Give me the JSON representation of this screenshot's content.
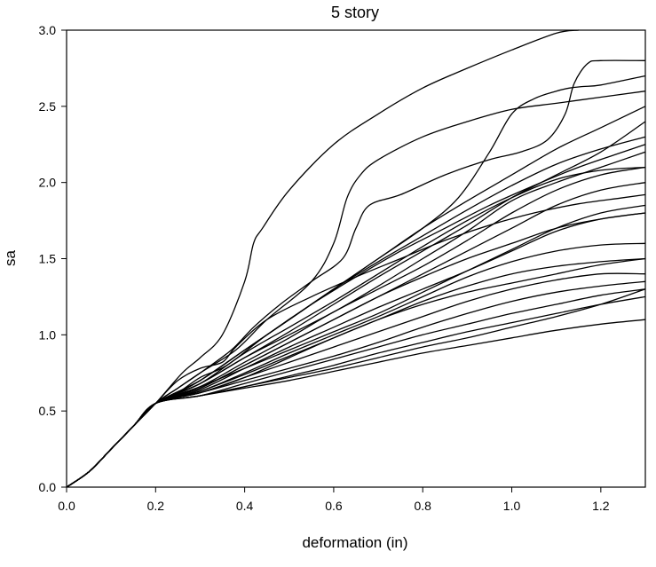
{
  "chart_data": {
    "type": "line",
    "title": "5 story",
    "xlabel": "deformation (in)",
    "ylabel": "sa",
    "xlim": [
      0,
      1.3
    ],
    "ylim": [
      0,
      3.0
    ],
    "x_ticks": [
      "0.0",
      "0.2",
      "0.4",
      "0.6",
      "0.8",
      "1.0",
      "1.2"
    ],
    "y_ticks": [
      "0.0",
      "0.5",
      "1.0",
      "1.5",
      "2.0",
      "2.5",
      "3.0"
    ],
    "grid": false,
    "legend": "none",
    "line_color": "#000000",
    "series": [
      {
        "x": [
          0,
          0.05,
          0.1,
          0.15,
          0.2,
          0.26,
          0.3,
          0.35,
          0.4,
          0.42,
          0.44,
          0.5,
          0.6,
          0.7,
          0.8,
          0.9,
          1.0,
          1.1,
          1.15
        ],
        "y": [
          0,
          0.1,
          0.25,
          0.4,
          0.55,
          0.75,
          0.85,
          1.0,
          1.35,
          1.6,
          1.7,
          1.95,
          2.25,
          2.45,
          2.62,
          2.75,
          2.87,
          2.98,
          3.0
        ]
      },
      {
        "x": [
          0,
          0.05,
          0.1,
          0.15,
          0.2,
          0.25,
          0.3,
          0.37,
          0.42,
          0.48,
          0.55,
          0.62,
          0.65,
          0.68,
          0.75,
          0.85,
          0.95,
          1.02,
          1.08,
          1.12,
          1.14,
          1.17,
          1.2,
          1.3
        ],
        "y": [
          0,
          0.1,
          0.25,
          0.4,
          0.55,
          0.65,
          0.75,
          0.9,
          1.05,
          1.2,
          1.35,
          1.5,
          1.7,
          1.85,
          1.92,
          2.05,
          2.15,
          2.2,
          2.28,
          2.45,
          2.65,
          2.78,
          2.8,
          2.8
        ]
      },
      {
        "x": [
          0,
          0.05,
          0.1,
          0.15,
          0.2,
          0.25,
          0.3,
          0.38,
          0.45,
          0.55,
          0.6,
          0.63,
          0.66,
          0.7,
          0.8,
          0.9,
          1.0,
          1.1,
          1.2,
          1.3
        ],
        "y": [
          0,
          0.1,
          0.25,
          0.4,
          0.55,
          0.65,
          0.75,
          0.9,
          1.1,
          1.35,
          1.6,
          1.9,
          2.05,
          2.15,
          2.3,
          2.4,
          2.48,
          2.52,
          2.56,
          2.6
        ]
      },
      {
        "x": [
          0,
          0.05,
          0.1,
          0.15,
          0.2,
          0.25,
          0.3,
          0.4,
          0.5,
          0.6,
          0.7,
          0.8,
          0.88,
          0.95,
          1.0,
          1.05,
          1.1,
          1.13,
          1.16,
          1.2,
          1.3
        ],
        "y": [
          0,
          0.1,
          0.25,
          0.4,
          0.55,
          0.62,
          0.7,
          0.9,
          1.1,
          1.3,
          1.5,
          1.7,
          1.9,
          2.2,
          2.45,
          2.55,
          2.6,
          2.62,
          2.63,
          2.64,
          2.7
        ]
      },
      {
        "x": [
          0,
          0.05,
          0.1,
          0.15,
          0.2,
          0.3,
          0.4,
          0.5,
          0.6,
          0.7,
          0.8,
          0.9,
          1.0,
          1.1,
          1.2,
          1.3
        ],
        "y": [
          0,
          0.1,
          0.25,
          0.4,
          0.55,
          0.7,
          0.9,
          1.1,
          1.3,
          1.5,
          1.7,
          1.88,
          2.05,
          2.22,
          2.36,
          2.5
        ]
      },
      {
        "x": [
          0,
          0.05,
          0.1,
          0.15,
          0.2,
          0.3,
          0.4,
          0.5,
          0.6,
          0.7,
          0.8,
          0.9,
          1.0,
          1.1,
          1.2,
          1.3
        ],
        "y": [
          0,
          0.1,
          0.25,
          0.4,
          0.55,
          0.68,
          0.85,
          1.02,
          1.2,
          1.38,
          1.55,
          1.72,
          1.9,
          2.05,
          2.2,
          2.4
        ]
      },
      {
        "x": [
          0,
          0.05,
          0.1,
          0.15,
          0.2,
          0.3,
          0.4,
          0.5,
          0.6,
          0.7,
          0.8,
          0.9,
          1.0,
          1.1,
          1.2,
          1.3
        ],
        "y": [
          0,
          0.1,
          0.25,
          0.4,
          0.55,
          0.7,
          0.9,
          1.1,
          1.3,
          1.48,
          1.65,
          1.82,
          1.98,
          2.12,
          2.22,
          2.3
        ]
      },
      {
        "x": [
          0,
          0.05,
          0.1,
          0.15,
          0.2,
          0.3,
          0.4,
          0.5,
          0.6,
          0.7,
          0.8,
          0.9,
          1.0,
          1.1,
          1.2,
          1.3
        ],
        "y": [
          0,
          0.1,
          0.25,
          0.4,
          0.55,
          0.68,
          0.85,
          1.0,
          1.15,
          1.32,
          1.5,
          1.68,
          1.88,
          2.0,
          2.1,
          2.2
        ]
      },
      {
        "x": [
          0,
          0.05,
          0.1,
          0.15,
          0.2,
          0.3,
          0.4,
          0.5,
          0.6,
          0.7,
          0.8,
          0.9,
          1.0,
          1.1,
          1.2,
          1.3
        ],
        "y": [
          0,
          0.1,
          0.25,
          0.4,
          0.55,
          0.68,
          0.88,
          1.05,
          1.22,
          1.4,
          1.58,
          1.75,
          1.9,
          2.02,
          2.08,
          2.1
        ]
      },
      {
        "x": [
          0,
          0.05,
          0.1,
          0.15,
          0.2,
          0.3,
          0.4,
          0.5,
          0.6,
          0.7,
          0.8,
          0.9,
          1.0,
          1.1,
          1.2,
          1.3
        ],
        "y": [
          0,
          0.1,
          0.25,
          0.4,
          0.55,
          0.66,
          0.82,
          0.98,
          1.15,
          1.3,
          1.45,
          1.62,
          1.8,
          1.95,
          2.05,
          2.1
        ]
      },
      {
        "x": [
          0,
          0.05,
          0.1,
          0.15,
          0.2,
          0.3,
          0.4,
          0.5,
          0.6,
          0.7,
          0.8,
          0.9,
          1.0,
          1.1,
          1.2,
          1.3
        ],
        "y": [
          0,
          0.1,
          0.25,
          0.4,
          0.55,
          0.65,
          0.8,
          0.95,
          1.1,
          1.25,
          1.4,
          1.55,
          1.7,
          1.85,
          1.95,
          2.0
        ]
      },
      {
        "x": [
          0,
          0.05,
          0.1,
          0.15,
          0.2,
          0.3,
          0.4,
          0.5,
          0.6,
          0.7,
          0.8,
          0.9,
          1.0,
          1.1,
          1.2,
          1.3
        ],
        "y": [
          0,
          0.1,
          0.25,
          0.4,
          0.55,
          0.65,
          0.8,
          0.95,
          1.1,
          1.25,
          1.38,
          1.5,
          1.6,
          1.7,
          1.76,
          1.8
        ]
      },
      {
        "x": [
          0,
          0.05,
          0.1,
          0.15,
          0.2,
          0.3,
          0.4,
          0.5,
          0.6,
          0.7,
          0.8,
          0.9,
          1.0,
          1.1,
          1.2,
          1.3
        ],
        "y": [
          0,
          0.1,
          0.25,
          0.4,
          0.55,
          0.64,
          0.78,
          0.92,
          1.05,
          1.18,
          1.3,
          1.42,
          1.55,
          1.68,
          1.76,
          1.8
        ]
      },
      {
        "x": [
          0,
          0.05,
          0.1,
          0.15,
          0.2,
          0.3,
          0.4,
          0.5,
          0.6,
          0.7,
          0.8,
          0.9,
          1.0,
          1.1,
          1.2,
          1.3
        ],
        "y": [
          0,
          0.1,
          0.25,
          0.4,
          0.55,
          0.63,
          0.75,
          0.88,
          1.0,
          1.12,
          1.25,
          1.38,
          1.48,
          1.55,
          1.59,
          1.6
        ]
      },
      {
        "x": [
          0,
          0.05,
          0.1,
          0.15,
          0.2,
          0.3,
          0.4,
          0.5,
          0.6,
          0.7,
          0.8,
          0.9,
          1.0,
          1.1,
          1.2,
          1.3
        ],
        "y": [
          0,
          0.1,
          0.25,
          0.4,
          0.55,
          0.62,
          0.72,
          0.85,
          0.98,
          1.1,
          1.22,
          1.32,
          1.4,
          1.45,
          1.48,
          1.5
        ]
      },
      {
        "x": [
          0,
          0.05,
          0.1,
          0.15,
          0.2,
          0.3,
          0.4,
          0.5,
          0.6,
          0.7,
          0.8,
          0.9,
          1.0,
          1.1,
          1.2,
          1.3
        ],
        "y": [
          0,
          0.1,
          0.25,
          0.4,
          0.55,
          0.62,
          0.72,
          0.82,
          0.92,
          1.02,
          1.12,
          1.22,
          1.3,
          1.36,
          1.4,
          1.4
        ]
      },
      {
        "x": [
          0,
          0.05,
          0.1,
          0.15,
          0.2,
          0.3,
          0.4,
          0.5,
          0.6,
          0.7,
          0.8,
          0.9,
          1.0,
          1.1,
          1.2,
          1.3
        ],
        "y": [
          0,
          0.1,
          0.25,
          0.4,
          0.55,
          0.62,
          0.7,
          0.78,
          0.86,
          0.95,
          1.05,
          1.14,
          1.22,
          1.28,
          1.32,
          1.35
        ]
      },
      {
        "x": [
          0,
          0.05,
          0.1,
          0.15,
          0.2,
          0.3,
          0.4,
          0.5,
          0.6,
          0.7,
          0.8,
          0.9,
          1.0,
          1.1,
          1.2,
          1.3
        ],
        "y": [
          0,
          0.1,
          0.25,
          0.4,
          0.55,
          0.6,
          0.68,
          0.76,
          0.84,
          0.92,
          1.0,
          1.07,
          1.14,
          1.2,
          1.26,
          1.3
        ]
      },
      {
        "x": [
          0,
          0.05,
          0.1,
          0.15,
          0.2,
          0.3,
          0.4,
          0.5,
          0.6,
          0.7,
          0.8,
          0.9,
          1.0,
          1.1,
          1.2,
          1.3
        ],
        "y": [
          0,
          0.1,
          0.25,
          0.4,
          0.55,
          0.6,
          0.66,
          0.73,
          0.8,
          0.88,
          0.95,
          1.02,
          1.08,
          1.14,
          1.2,
          1.25
        ]
      },
      {
        "x": [
          0,
          0.05,
          0.1,
          0.15,
          0.2,
          0.3,
          0.4,
          0.5,
          0.6,
          0.7,
          0.8,
          0.9,
          1.0,
          1.1,
          1.2,
          1.3
        ],
        "y": [
          0,
          0.1,
          0.25,
          0.4,
          0.55,
          0.6,
          0.66,
          0.72,
          0.78,
          0.85,
          0.92,
          0.98,
          1.05,
          1.12,
          1.2,
          1.3
        ]
      },
      {
        "x": [
          0,
          0.05,
          0.1,
          0.15,
          0.2,
          0.3,
          0.4,
          0.5,
          0.6,
          0.7,
          0.8,
          0.9,
          1.0,
          1.1,
          1.2,
          1.3
        ],
        "y": [
          0,
          0.1,
          0.25,
          0.4,
          0.55,
          0.6,
          0.65,
          0.7,
          0.76,
          0.82,
          0.88,
          0.93,
          0.98,
          1.03,
          1.07,
          1.1
        ]
      },
      {
        "x": [
          0,
          0.05,
          0.1,
          0.15,
          0.2,
          0.25,
          0.3,
          0.35,
          0.38,
          0.45,
          0.55,
          0.65,
          0.75,
          0.85,
          0.95,
          1.05,
          1.15,
          1.25,
          1.3
        ],
        "y": [
          0,
          0.1,
          0.25,
          0.4,
          0.55,
          0.7,
          0.78,
          0.82,
          0.92,
          1.1,
          1.25,
          1.38,
          1.5,
          1.62,
          1.72,
          1.8,
          1.86,
          1.9,
          1.92
        ]
      },
      {
        "x": [
          0,
          0.05,
          0.1,
          0.15,
          0.2,
          0.25,
          0.3,
          0.36,
          0.45,
          0.55,
          0.65,
          0.75,
          0.85,
          0.95,
          1.05,
          1.15,
          1.25,
          1.3
        ],
        "y": [
          0,
          0.1,
          0.25,
          0.4,
          0.55,
          0.62,
          0.72,
          0.8,
          1.0,
          1.2,
          1.38,
          1.55,
          1.7,
          1.85,
          1.98,
          2.1,
          2.2,
          2.25
        ]
      },
      {
        "x": [
          0,
          0.05,
          0.1,
          0.15,
          0.2,
          0.3,
          0.4,
          0.5,
          0.6,
          0.7,
          0.8,
          0.9,
          1.0,
          1.1,
          1.2,
          1.3
        ],
        "y": [
          0,
          0.1,
          0.25,
          0.4,
          0.55,
          0.66,
          0.78,
          0.9,
          1.02,
          1.14,
          1.28,
          1.42,
          1.56,
          1.7,
          1.8,
          1.85
        ]
      },
      {
        "x": [
          0,
          0.05,
          0.1,
          0.15,
          0.2,
          0.3,
          0.4,
          0.5,
          0.6,
          0.7,
          0.8,
          0.9,
          1.0,
          1.1,
          1.2,
          1.3
        ],
        "y": [
          0,
          0.1,
          0.25,
          0.4,
          0.55,
          0.63,
          0.74,
          0.86,
          0.98,
          1.1,
          1.2,
          1.28,
          1.34,
          1.4,
          1.46,
          1.5
        ]
      }
    ]
  }
}
